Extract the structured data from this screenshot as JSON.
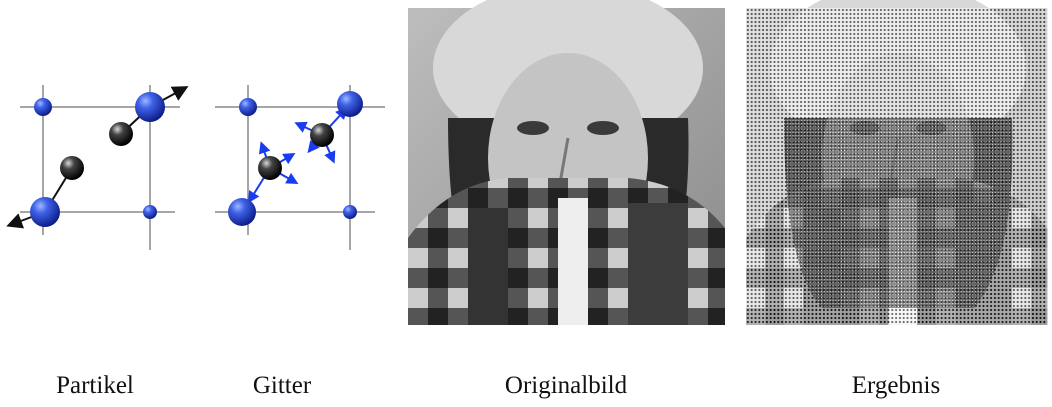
{
  "figure": {
    "panels": [
      {
        "caption": "Partikel"
      },
      {
        "caption": "Gitter"
      },
      {
        "caption": "Originalbild"
      },
      {
        "caption": "Ergebnis"
      }
    ]
  }
}
